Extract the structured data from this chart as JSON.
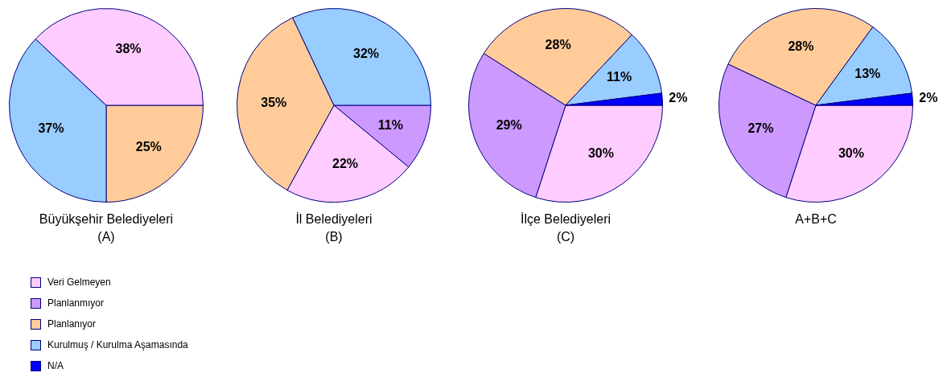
{
  "chart_data": [
    {
      "type": "pie",
      "title": "Büyükşehir Belediyeleri\n(A)",
      "categories": [
        null,
        null,
        null
      ],
      "values": [
        25,
        37,
        38
      ],
      "value_labels": [
        "25%",
        "37%",
        "38%"
      ],
      "colors": [
        "#ffcc99",
        "#99ccff",
        "#ffccff"
      ],
      "legend": false
    },
    {
      "type": "pie",
      "title": "İl Belediyeleri\n(B)",
      "categories": [
        null,
        null,
        null,
        null
      ],
      "values": [
        11,
        22,
        35,
        32
      ],
      "value_labels": [
        "11%",
        "22%",
        "35%",
        "32%"
      ],
      "colors": [
        "#cc99ff",
        "#ffccff",
        "#ffcc99",
        "#99ccff"
      ],
      "legend": false
    },
    {
      "type": "pie",
      "title": "İlçe Belediyeleri\n(C)",
      "categories": [
        "Veri Gelmeyen",
        "Planlanmıyor",
        "Planlanıyor",
        "Kurulmuş / Kurulma Aşamasında",
        "N/A"
      ],
      "values": [
        30,
        29,
        28,
        11,
        2
      ],
      "value_labels": [
        "30%",
        "29%",
        "28%",
        "11%",
        "2%"
      ],
      "colors": [
        "#ffccff",
        "#cc99ff",
        "#ffcc99",
        "#99ccff",
        "#0000ff"
      ],
      "legend": "bottom left"
    },
    {
      "type": "pie",
      "title": "A+B+C",
      "categories": [
        null,
        null,
        null,
        null,
        null
      ],
      "values": [
        30,
        27,
        28,
        13,
        2
      ],
      "value_labels": [
        "30%",
        "27%",
        "28%",
        "13%",
        "2%"
      ],
      "colors": [
        "#ffccff",
        "#cc99ff",
        "#ffcc99",
        "#99ccff",
        "#0000ff"
      ],
      "legend": false
    }
  ]
}
